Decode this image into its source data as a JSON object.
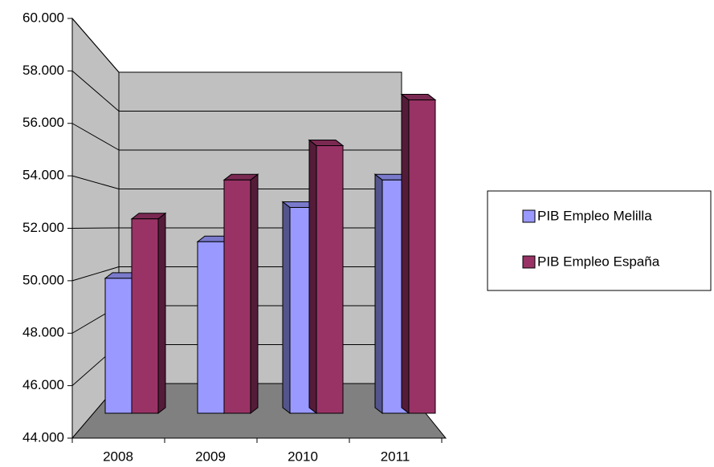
{
  "chart_data": {
    "type": "bar3d",
    "categories": [
      "2008",
      "2009",
      "2010",
      "2011"
    ],
    "series": [
      {
        "name": "PIB Empleo Melilla",
        "color": "#9999ff",
        "values": [
          49900,
          51500,
          53000,
          54200
        ]
      },
      {
        "name": "PIB Empleo España",
        "color": "#993366",
        "values": [
          52500,
          54200,
          55700,
          57700
        ]
      }
    ],
    "ylim": [
      44000,
      60000
    ],
    "yticks": [
      {
        "value": 44000,
        "label": "44.000"
      },
      {
        "value": 46000,
        "label": "46.000"
      },
      {
        "value": 48000,
        "label": "48.000"
      },
      {
        "value": 50000,
        "label": "50.000"
      },
      {
        "value": 52000,
        "label": "52.000"
      },
      {
        "value": 54000,
        "label": "54.000"
      },
      {
        "value": 56000,
        "label": "56.000"
      },
      {
        "value": 58000,
        "label": "58.000"
      },
      {
        "value": 60000,
        "label": "60.000"
      }
    ],
    "grid": true
  }
}
